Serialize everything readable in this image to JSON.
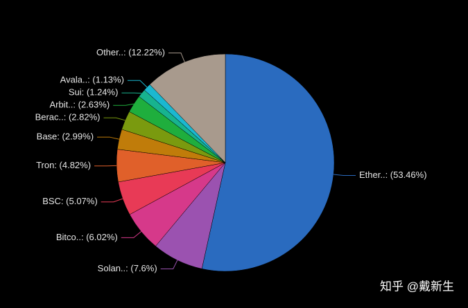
{
  "chart_data": {
    "type": "pie",
    "values": [
      53.46,
      7.6,
      6.02,
      5.07,
      4.82,
      2.99,
      2.82,
      2.63,
      1.24,
      1.13,
      12.22
    ],
    "value_labels": [
      "Ether..: (53.46%)",
      "Solan..: (7.6%)",
      "Bitco..: (6.02%)",
      "BSC: (5.07%)",
      "Tron: (4.82%)",
      "Base: (2.99%)",
      "Berac..: (2.82%)",
      "Arbit..: (2.63%)",
      "Sui: (1.24%)",
      "Avala..: (1.13%)",
      "Other..: (12.22%)"
    ],
    "colors": [
      "#2a6bbf",
      "#9b52b0",
      "#d6398a",
      "#e83a56",
      "#e0602a",
      "#c07c0a",
      "#7a9a0f",
      "#1fae3d",
      "#17b38f",
      "#1bb8d0",
      "#a89a8d"
    ],
    "watermark": "知乎 @戴新生"
  }
}
